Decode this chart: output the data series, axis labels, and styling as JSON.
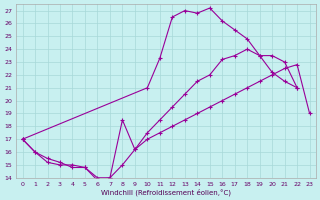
{
  "xlabel": "Windchill (Refroidissement éolien,°C)",
  "background_color": "#c8f0f0",
  "grid_color": "#a8d8d8",
  "line_color": "#990099",
  "xlim": [
    -0.5,
    23.5
  ],
  "ylim": [
    14,
    27.5
  ],
  "yticks": [
    14,
    15,
    16,
    17,
    18,
    19,
    20,
    21,
    22,
    23,
    24,
    25,
    26,
    27
  ],
  "xticks": [
    0,
    1,
    2,
    3,
    4,
    5,
    6,
    7,
    8,
    9,
    10,
    11,
    12,
    13,
    14,
    15,
    16,
    17,
    18,
    19,
    20,
    21,
    22,
    23
  ],
  "s1x": [
    0,
    1,
    2,
    3,
    4,
    5,
    6,
    7,
    8,
    9,
    10,
    11,
    12,
    13,
    14,
    15,
    16,
    17,
    18,
    19,
    20,
    21,
    22
  ],
  "s1y": [
    17.0,
    16.0,
    15.2,
    15.0,
    15.0,
    14.8,
    14.0,
    14.0,
    15.0,
    16.2,
    17.5,
    18.5,
    19.5,
    20.5,
    21.5,
    22.0,
    23.2,
    23.5,
    24.0,
    23.5,
    23.5,
    23.0,
    21.0
  ],
  "s2x": [
    0,
    10,
    11,
    12,
    13,
    14,
    15,
    16,
    17,
    18,
    19,
    20,
    21,
    22
  ],
  "s2y": [
    17.0,
    21.0,
    23.3,
    26.5,
    27.0,
    26.8,
    27.2,
    26.2,
    25.5,
    24.8,
    23.5,
    22.2,
    21.5,
    21.0
  ],
  "s3x": [
    0,
    1,
    2,
    3,
    4,
    5,
    6,
    7,
    8,
    9,
    10,
    11,
    12,
    13,
    14,
    15,
    16,
    17,
    18,
    19,
    20,
    21,
    22,
    23
  ],
  "s3y": [
    17.0,
    16.0,
    15.5,
    15.2,
    14.8,
    14.8,
    13.8,
    14.0,
    18.5,
    16.2,
    17.0,
    17.5,
    18.0,
    18.5,
    19.0,
    19.5,
    20.0,
    20.5,
    21.0,
    21.5,
    22.0,
    22.5,
    22.8,
    19.0
  ]
}
